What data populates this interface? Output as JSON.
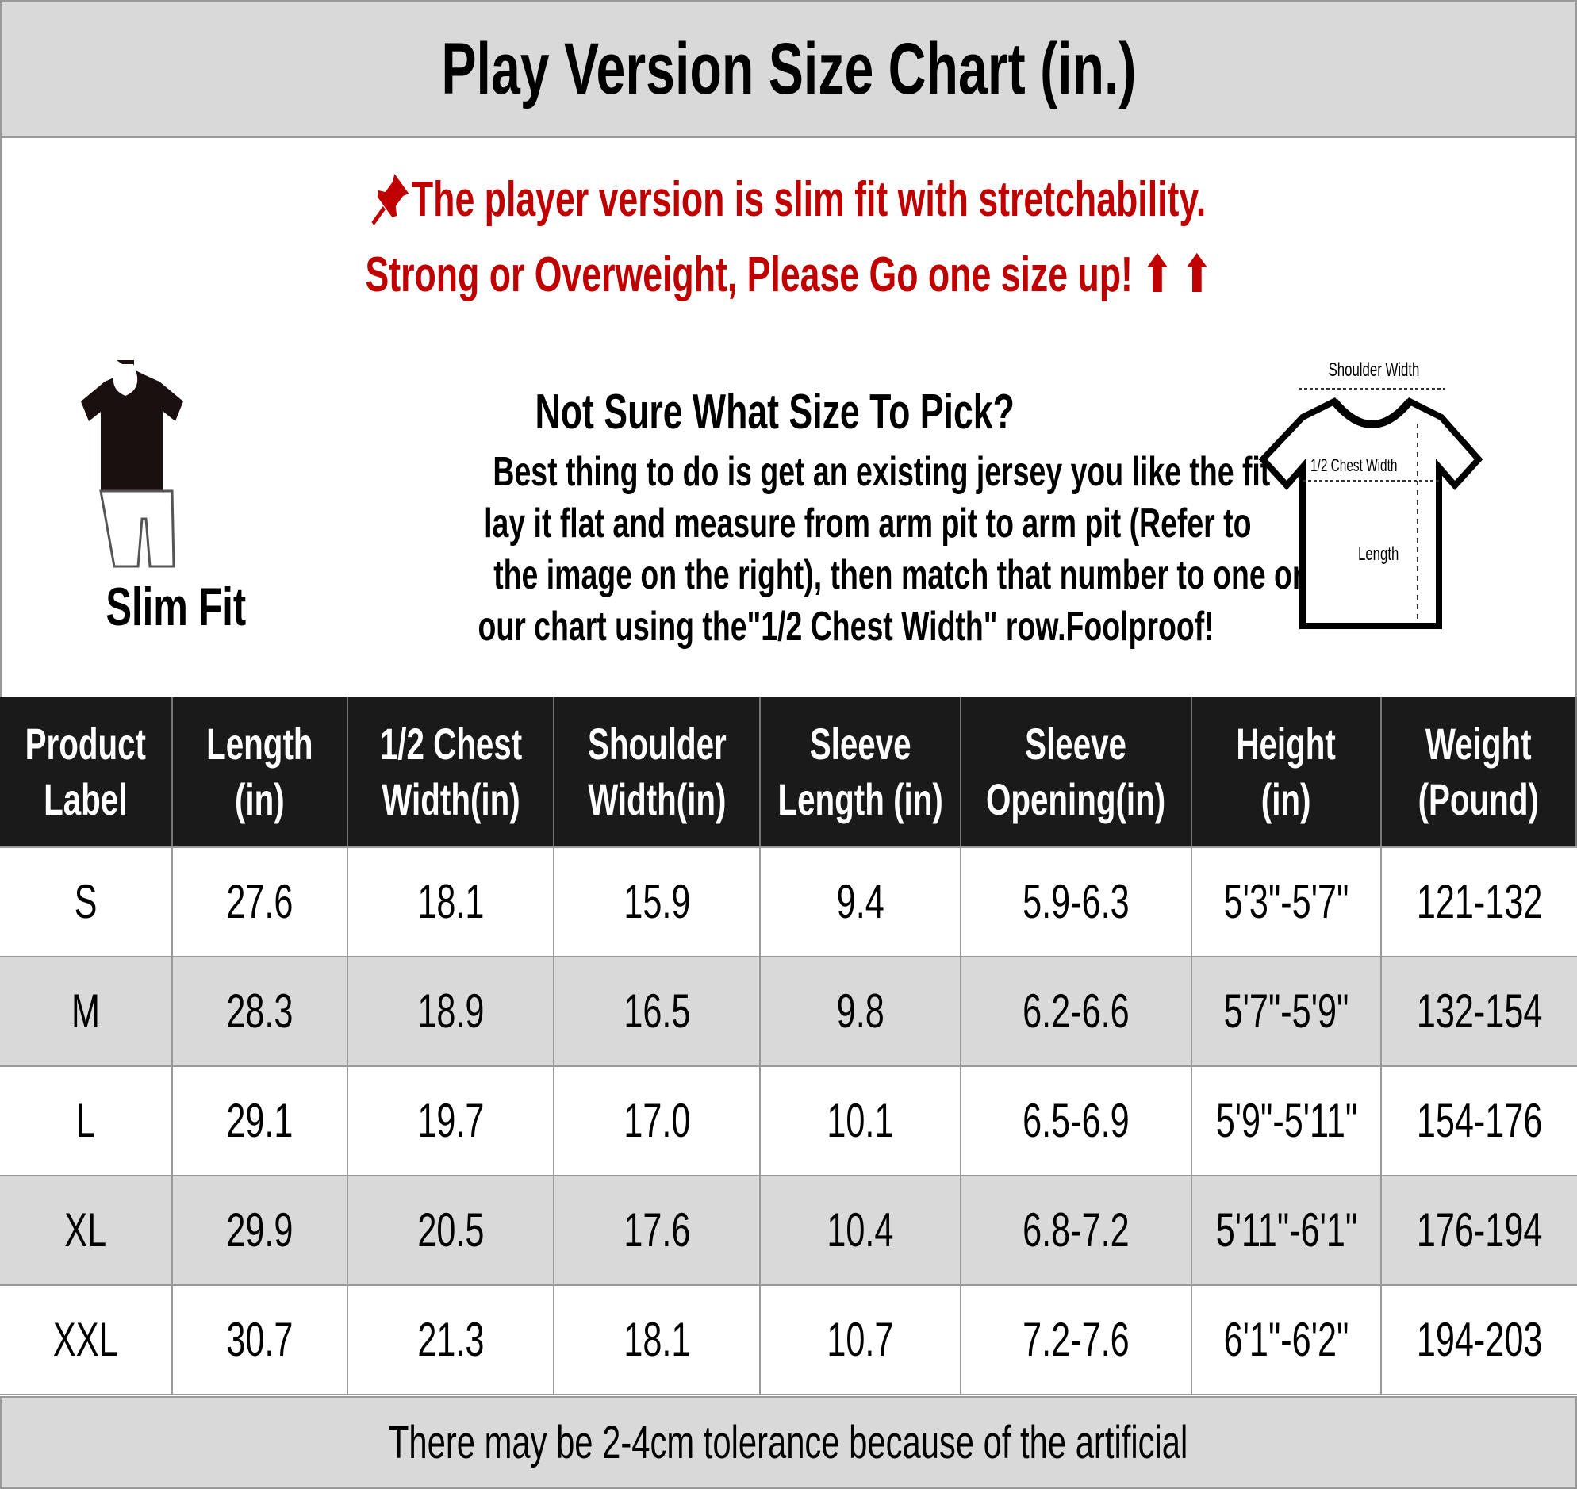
{
  "title": "Play Version Size Chart (in.)",
  "notice": {
    "line1": "The player version is slim fit with stretchability.",
    "line2": "Strong or Overweight, Please Go one size up! ⬆ ⬆",
    "pin_icon": "pushpin-icon",
    "color": "#c00000"
  },
  "fit_label": "Slim Fit",
  "guide": {
    "heading": "Not Sure What Size To Pick?",
    "lines": [
      "Best thing to do is get an existing jersey you like the fit of",
      "lay it flat and measure from arm pit to arm pit (Refer to",
      "the image on the right), then match that number to one on",
      "our chart using the\"1/2 Chest Width\" row.Foolproof!"
    ]
  },
  "diagram": {
    "shoulder": "Shoulder Width",
    "chest": "1/2 Chest Width",
    "length": "Length"
  },
  "table": {
    "headers": [
      [
        "Product",
        "Label"
      ],
      [
        "Length",
        "(in)"
      ],
      [
        "1/2 Chest",
        "Width(in)"
      ],
      [
        "Shoulder",
        "Width(in)"
      ],
      [
        "Sleeve",
        "Length (in)"
      ],
      [
        "Sleeve",
        "Opening(in)"
      ],
      [
        "Height",
        "(in)"
      ],
      [
        "Weight",
        "(Pound)"
      ]
    ],
    "rows": [
      [
        "S",
        "27.6",
        "18.1",
        "15.9",
        "9.4",
        "5.9-6.3",
        "5'3\"-5'7\"",
        "121-132"
      ],
      [
        "M",
        "28.3",
        "18.9",
        "16.5",
        "9.8",
        "6.2-6.6",
        "5'7\"-5'9\"",
        "132-154"
      ],
      [
        "L",
        "29.1",
        "19.7",
        "17.0",
        "10.1",
        "6.5-6.9",
        "5'9\"-5'11\"",
        "154-176"
      ],
      [
        "XL",
        "29.9",
        "20.5",
        "17.6",
        "10.4",
        "6.8-7.2",
        "5'11\"-6'1\"",
        "176-194"
      ],
      [
        "XXL",
        "30.7",
        "21.3",
        "18.1",
        "10.7",
        "7.2-7.6",
        "6'1\"-6'2\"",
        "194-203"
      ]
    ]
  },
  "footer": "There may be 2-4cm tolerance because of the artificial"
}
